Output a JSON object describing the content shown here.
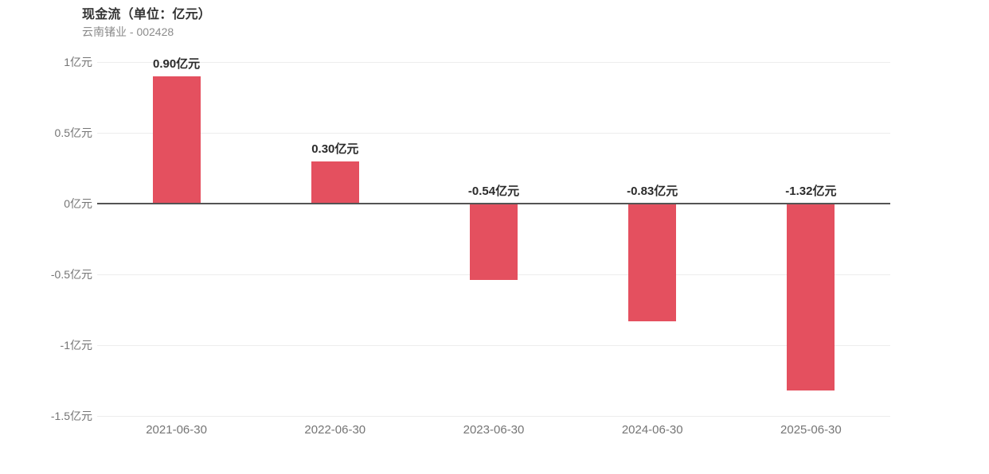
{
  "header": {
    "title": "现金流（单位：亿元）",
    "subtitle": "云南锗业 - 002428"
  },
  "chart_data": {
    "type": "bar",
    "title": "现金流（单位：亿元）",
    "subtitle": "云南锗业 - 002428",
    "categories": [
      "2021-06-30",
      "2022-06-30",
      "2023-06-30",
      "2024-06-30",
      "2025-06-30"
    ],
    "values": [
      0.9,
      0.3,
      -0.54,
      -0.83,
      -1.32
    ],
    "value_labels": [
      "0.90亿元",
      "0.30亿元",
      "-0.54亿元",
      "-0.83亿元",
      "-1.32亿元"
    ],
    "unit": "亿元",
    "xlabel": "",
    "ylabel": "",
    "ylim": [
      -1.5,
      1
    ],
    "y_ticks": [
      {
        "value": 1,
        "label": "1亿元"
      },
      {
        "value": 0.5,
        "label": "0.5亿元"
      },
      {
        "value": 0,
        "label": "0亿元"
      },
      {
        "value": -0.5,
        "label": "-0.5亿元"
      },
      {
        "value": -1,
        "label": "-1亿元"
      },
      {
        "value": -1.5,
        "label": "-1.5亿元"
      }
    ],
    "grid": true,
    "legend_position": "none",
    "bar_color": "#e4505f"
  },
  "colors": {
    "bar": "#e4505f",
    "gridline": "#ededed",
    "zero_line": "#545454",
    "title_text": "#333333",
    "subtitle_text": "#8c8c8c",
    "axis_label": "#757575",
    "value_label": "#2b2b2b",
    "background": "#ffffff"
  }
}
